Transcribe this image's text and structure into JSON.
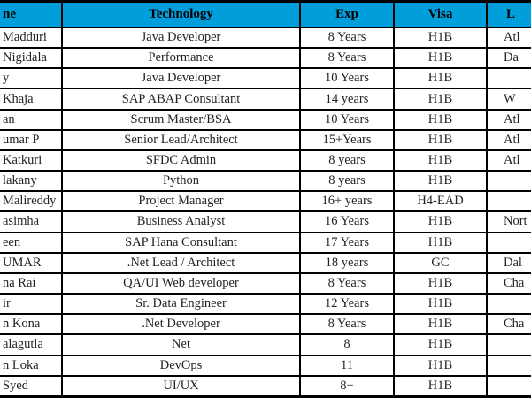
{
  "colors": {
    "header_bg": "#009EDA",
    "border": "#000000",
    "header_text": "#000000",
    "body_text": "#222222"
  },
  "table": {
    "columns": [
      {
        "key": "name",
        "label": "ne"
      },
      {
        "key": "technology",
        "label": "Technology"
      },
      {
        "key": "exp",
        "label": "Exp"
      },
      {
        "key": "visa",
        "label": "Visa"
      },
      {
        "key": "location",
        "label": "L"
      }
    ],
    "rows": [
      {
        "name": "Madduri",
        "technology": "Java Developer",
        "exp": "8 Years",
        "visa": "H1B",
        "location": "Atl"
      },
      {
        "name": "Nigidala",
        "technology": "Performance",
        "exp": "8 Years",
        "visa": "H1B",
        "location": "Da"
      },
      {
        "name": "y",
        "technology": "Java Developer",
        "exp": "10 Years",
        "visa": "H1B",
        "location": ""
      },
      {
        "name": "Khaja",
        "technology": "SAP ABAP Consultant",
        "exp": "14 years",
        "visa": "H1B",
        "location": "W"
      },
      {
        "name": "an",
        "technology": "Scrum Master/BSA",
        "exp": "10 Years",
        "visa": "H1B",
        "location": "Atl"
      },
      {
        "name": "umar P",
        "technology": "Senior Lead/Architect",
        "exp": "15+Years",
        "visa": "H1B",
        "location": "Atl"
      },
      {
        "name": "Katkuri",
        "technology": "SFDC Admin",
        "exp": "8 years",
        "visa": "H1B",
        "location": "Atl"
      },
      {
        "name": "lakany",
        "technology": "Python",
        "exp": "8 years",
        "visa": "H1B",
        "location": ""
      },
      {
        "name": "Malireddy",
        "technology": "Project Manager",
        "exp": "16+ years",
        "visa": "H4-EAD",
        "location": ""
      },
      {
        "name": "asimha",
        "technology": "Business Analyst",
        "exp": "16 Years",
        "visa": "H1B",
        "location": "Nort"
      },
      {
        "name": "een",
        "technology": "SAP Hana Consultant",
        "exp": "17 Years",
        "visa": "H1B",
        "location": ""
      },
      {
        "name": "UMAR",
        "technology": ".Net Lead / Architect",
        "exp": "18 years",
        "visa": "GC",
        "location": "Dal"
      },
      {
        "name": "na Rai",
        "technology": "QA/UI Web developer",
        "exp": "8 Years",
        "visa": "H1B",
        "location": "Cha"
      },
      {
        "name": "ir",
        "technology": "Sr. Data Engineer",
        "exp": "12 Years",
        "visa": "H1B",
        "location": ""
      },
      {
        "name": "n Kona",
        "technology": ".Net Developer",
        "exp": "8 Years",
        "visa": "H1B",
        "location": "Cha"
      },
      {
        "name": "alagutla",
        "technology": "Net",
        "exp": "8",
        "visa": "H1B",
        "location": ""
      },
      {
        "name": "n Loka",
        "technology": "DevOps",
        "exp": "11",
        "visa": "H1B",
        "location": ""
      },
      {
        "name": "Syed",
        "technology": "UI/UX",
        "exp": "8+",
        "visa": "H1B",
        "location": ""
      }
    ]
  }
}
